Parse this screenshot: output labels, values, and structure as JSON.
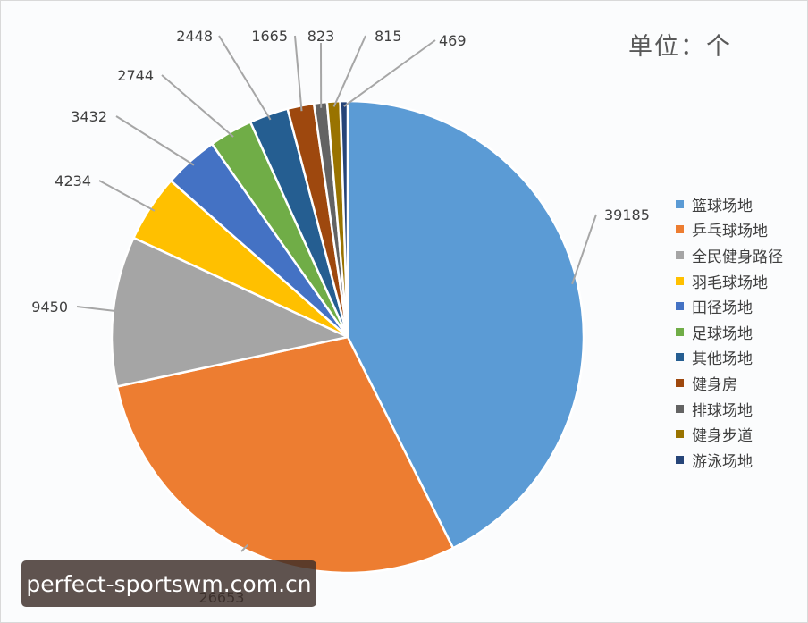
{
  "unit_label": "单位：个",
  "watermark": "perfect-sportswm.com.cn",
  "chart_data": {
    "type": "pie",
    "title": "",
    "categories": [
      "篮球场地",
      "乒乓球场地",
      "全民健身路径",
      "羽毛球场地",
      "田径场地",
      "足球场地",
      "其他场地",
      "健身房",
      "排球场地",
      "健身步道",
      "游泳场地"
    ],
    "values": [
      39185,
      26653,
      9450,
      4234,
      3432,
      2744,
      2448,
      1665,
      823,
      815,
      469
    ],
    "data_labels": [
      "39185",
      "26653",
      "9450",
      "4234",
      "3432",
      "2744",
      "2448",
      "1665",
      "823",
      "815",
      "469"
    ],
    "colors": [
      "#5b9bd5",
      "#ed7d31",
      "#a5a5a5",
      "#ffc000",
      "#4472c4",
      "#70ad47",
      "#255e91",
      "#9e480e",
      "#636363",
      "#997300",
      "#264478"
    ],
    "legend_position": "right",
    "start_angle_deg": 0,
    "direction": "clockwise"
  }
}
